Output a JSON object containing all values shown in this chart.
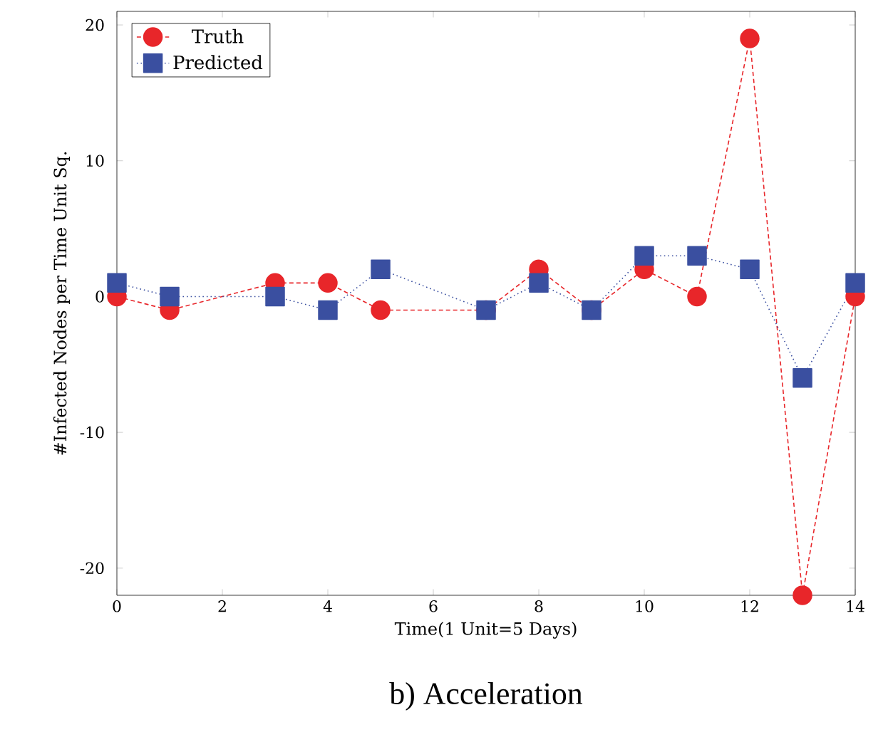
{
  "chart_data": {
    "type": "line",
    "xlabel": "Time(1 Unit=5 Days)",
    "ylabel": "#Infected Nodes per Time Unit Sq.",
    "annotations": [
      "b) Acceleration"
    ],
    "xlim": [
      0,
      14
    ],
    "ylim": [
      -22,
      21
    ],
    "xticks": [
      0,
      2,
      4,
      6,
      8,
      10,
      12,
      14
    ],
    "yticks": [
      -20,
      -10,
      0,
      10,
      20
    ],
    "legend": "top left",
    "series": [
      {
        "name": "Truth",
        "color": "#e8262a",
        "marker": "circle",
        "line_style": "dashed",
        "x": [
          0,
          1,
          3,
          4,
          5,
          7,
          8,
          9,
          10,
          11,
          12,
          13,
          14
        ],
        "values": [
          0,
          -1,
          1,
          1,
          -1,
          -1,
          2,
          -1,
          2,
          0,
          19,
          -22,
          0
        ]
      },
      {
        "name": "Predicted",
        "color": "#3a4fa0",
        "marker": "square",
        "line_style": "dotted",
        "x": [
          0,
          1,
          3,
          4,
          5,
          7,
          8,
          9,
          10,
          11,
          12,
          13,
          14
        ],
        "values": [
          1,
          0,
          0,
          -1,
          2,
          -1,
          1,
          -1,
          3,
          3,
          2,
          -6,
          1
        ]
      }
    ]
  }
}
